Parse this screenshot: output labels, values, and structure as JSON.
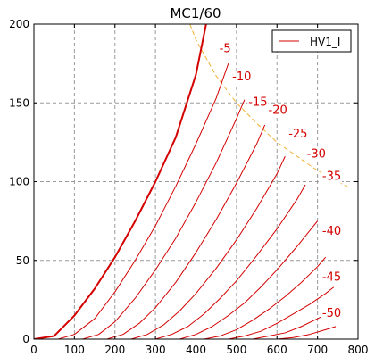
{
  "chart_data": {
    "type": "line",
    "title": "MC1/60",
    "xlabel": "",
    "ylabel": "",
    "xlim": [
      0,
      800
    ],
    "ylim": [
      0,
      200
    ],
    "x_ticks": [
      0,
      100,
      200,
      300,
      400,
      500,
      600,
      700,
      800
    ],
    "y_ticks": [
      0,
      50,
      100,
      150,
      200
    ],
    "grid": true,
    "legend": {
      "placement": "top-right",
      "entries": [
        "HV1_I"
      ]
    },
    "colors": {
      "curves": "#d40000",
      "power_limit": "#f0b030",
      "axes": "#000000",
      "grid": "#9a9a9a"
    },
    "series": [
      {
        "grid_voltage": 0,
        "label": "",
        "x": [
          0,
          50,
          100,
          150,
          200,
          250,
          300,
          350,
          400,
          425
        ],
        "y": [
          0,
          2,
          15,
          32,
          52,
          75,
          100,
          128,
          168,
          200
        ]
      },
      {
        "grid_voltage": -5,
        "label": "-5",
        "x": [
          60,
          100,
          150,
          200,
          250,
          300,
          350,
          400,
          450,
          480
        ],
        "y": [
          0,
          3,
          13,
          30,
          50,
          72,
          97,
          124,
          153,
          175
        ]
      },
      {
        "grid_voltage": -10,
        "label": "-10",
        "x": [
          120,
          160,
          200,
          250,
          300,
          350,
          400,
          450,
          500,
          520
        ],
        "y": [
          0,
          3,
          11,
          26,
          44,
          64,
          87,
          112,
          140,
          152
        ]
      },
      {
        "grid_voltage": -15,
        "label": "-15",
        "x": [
          180,
          220,
          260,
          300,
          350,
          400,
          450,
          500,
          550,
          570
        ],
        "y": [
          0,
          3,
          10,
          20,
          36,
          55,
          76,
          99,
          124,
          136
        ]
      },
      {
        "grid_voltage": -20,
        "label": "-20",
        "x": [
          240,
          280,
          320,
          360,
          400,
          450,
          500,
          550,
          600,
          620
        ],
        "y": [
          0,
          3,
          9,
          18,
          29,
          45,
          63,
          83,
          105,
          116
        ]
      },
      {
        "grid_voltage": -25,
        "label": "-25",
        "x": [
          300,
          340,
          380,
          420,
          460,
          500,
          550,
          600,
          650,
          670
        ],
        "y": [
          0,
          3,
          8,
          16,
          26,
          37,
          53,
          70,
          89,
          98
        ]
      },
      {
        "grid_voltage": -30,
        "label": "-30",
        "x": [
          360,
          400,
          440,
          480,
          520,
          560,
          600,
          650,
          700
        ],
        "y": [
          0,
          3,
          8,
          15,
          23,
          33,
          44,
          59,
          75
        ]
      },
      {
        "grid_voltage": -35,
        "label": "-35",
        "x": [
          420,
          460,
          500,
          540,
          580,
          620,
          660,
          700,
          720
        ],
        "y": [
          0,
          2,
          6,
          12,
          19,
          27,
          36,
          46,
          52
        ]
      },
      {
        "grid_voltage": -40,
        "label": "-40",
        "x": [
          480,
          520,
          560,
          600,
          640,
          680,
          720,
          740
        ],
        "y": [
          0,
          2,
          5,
          10,
          16,
          22,
          29,
          33
        ]
      },
      {
        "grid_voltage": -45,
        "label": "-45",
        "x": [
          540,
          580,
          620,
          660,
          700,
          740
        ],
        "y": [
          0,
          2,
          4,
          8,
          13,
          18
        ]
      },
      {
        "grid_voltage": -50,
        "label": "-50",
        "x": [
          600,
          640,
          680,
          720,
          745
        ],
        "y": [
          0,
          1,
          3,
          6,
          8
        ]
      }
    ],
    "label_points": [
      {
        "text": "-5",
        "x": 472,
        "y": 185
      },
      {
        "text": "-10",
        "x": 513,
        "y": 167
      },
      {
        "text": "-15",
        "x": 553,
        "y": 151
      },
      {
        "text": "-20",
        "x": 602,
        "y": 146
      },
      {
        "text": "-25",
        "x": 652,
        "y": 131
      },
      {
        "text": "-30",
        "x": 697,
        "y": 118
      },
      {
        "text": "-35",
        "x": 735,
        "y": 104
      },
      {
        "text": "-40",
        "x": 735,
        "y": 69
      },
      {
        "text": "-45",
        "x": 735,
        "y": 40
      },
      {
        "text": "-50",
        "x": 735,
        "y": 17
      }
    ],
    "power_limit": {
      "x": [
        385,
        400,
        450,
        500,
        550,
        600,
        650,
        700,
        750,
        780
      ],
      "y": [
        200,
        190,
        167,
        150,
        137,
        125,
        116,
        107,
        100,
        96
      ]
    }
  }
}
